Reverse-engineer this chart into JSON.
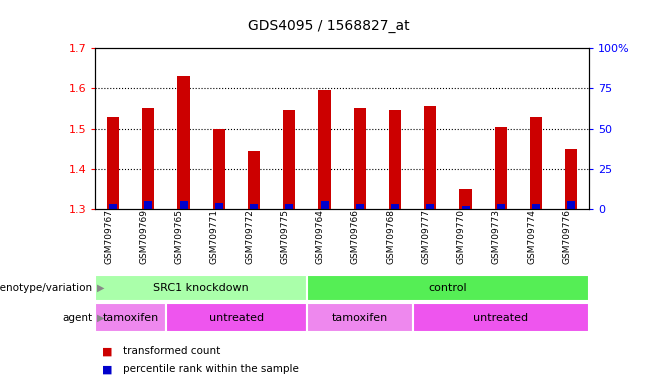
{
  "title": "GDS4095 / 1568827_at",
  "samples": [
    "GSM709767",
    "GSM709769",
    "GSM709765",
    "GSM709771",
    "GSM709772",
    "GSM709775",
    "GSM709764",
    "GSM709766",
    "GSM709768",
    "GSM709777",
    "GSM709770",
    "GSM709773",
    "GSM709774",
    "GSM709776"
  ],
  "red_values": [
    1.53,
    1.55,
    1.63,
    1.5,
    1.445,
    1.545,
    1.595,
    1.55,
    1.545,
    1.555,
    1.35,
    1.505,
    1.53,
    1.45
  ],
  "blue_values": [
    3.0,
    5.0,
    5.0,
    4.0,
    3.5,
    3.5,
    5.0,
    3.5,
    3.5,
    3.0,
    2.0,
    3.0,
    3.5,
    5.0
  ],
  "ymin": 1.3,
  "ymax": 1.7,
  "yticks": [
    1.3,
    1.4,
    1.5,
    1.6,
    1.7
  ],
  "y2ticks": [
    0,
    25,
    50,
    75,
    100
  ],
  "bar_color": "#CC0000",
  "blue_color": "#0000CC",
  "genotype_row": {
    "label": "genotype/variation",
    "groups": [
      {
        "text": "SRC1 knockdown",
        "start": 0,
        "end": 5,
        "color": "#AAFFAA"
      },
      {
        "text": "control",
        "start": 6,
        "end": 13,
        "color": "#55EE55"
      }
    ]
  },
  "agent_row": {
    "label": "agent",
    "groups": [
      {
        "text": "tamoxifen",
        "start": 0,
        "end": 1,
        "color": "#EE88EE"
      },
      {
        "text": "untreated",
        "start": 2,
        "end": 5,
        "color": "#EE55EE"
      },
      {
        "text": "tamoxifen",
        "start": 6,
        "end": 8,
        "color": "#EE88EE"
      },
      {
        "text": "untreated",
        "start": 9,
        "end": 13,
        "color": "#EE55EE"
      }
    ]
  },
  "legend_items": [
    {
      "color": "#CC0000",
      "label": "transformed count"
    },
    {
      "color": "#0000CC",
      "label": "percentile rank within the sample"
    }
  ]
}
